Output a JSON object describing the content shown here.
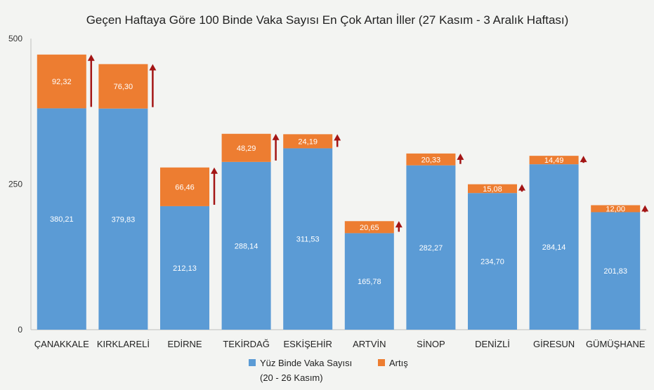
{
  "colors": {
    "base": "#5b9bd5",
    "increase": "#ed7d31",
    "arrow": "#a31515",
    "axis": "#bfbfbf",
    "background": "#f3f4f2"
  },
  "chart_data": {
    "type": "bar",
    "stacked": true,
    "title": "Geçen Haftaya Göre 100 Binde Vaka Sayısı En Çok Artan İller (27 Kasım - 3 Aralık Haftası)",
    "xlabel": "",
    "ylabel": "",
    "ylim": [
      0,
      500
    ],
    "yticks": [
      0,
      250,
      500
    ],
    "grid": false,
    "legend_position": "bottom",
    "categories": [
      "ÇANAKKALE",
      "KIRKLARELİ",
      "EDİRNE",
      "TEKİRDAĞ",
      "ESKİŞEHİR",
      "ARTVİN",
      "SİNOP",
      "DENİZLİ",
      "GİRESUN",
      "GÜMÜŞHANE"
    ],
    "series": [
      {
        "name": "Yüz Binde Vaka Sayısı",
        "legend_lines": [
          "Yüz Binde Vaka Sayısı",
          "(20 - 26 Kasım)"
        ],
        "values": [
          380.21,
          379.83,
          212.13,
          288.14,
          311.53,
          165.78,
          282.27,
          234.7,
          284.14,
          201.83
        ],
        "labels": [
          "380,21",
          "379,83",
          "212,13",
          "288,14",
          "311,53",
          "165,78",
          "282,27",
          "234,70",
          "284,14",
          "201,83"
        ]
      },
      {
        "name": "Artış",
        "legend_lines": [
          "Artış"
        ],
        "values": [
          92.32,
          76.3,
          66.46,
          48.29,
          24.19,
          20.65,
          20.33,
          15.08,
          14.49,
          12.0
        ],
        "labels": [
          "92,32",
          "76,30",
          "66,46",
          "48,29",
          "24,19",
          "20,65",
          "20,33",
          "15,08",
          "14,49",
          "12,00"
        ]
      }
    ]
  }
}
